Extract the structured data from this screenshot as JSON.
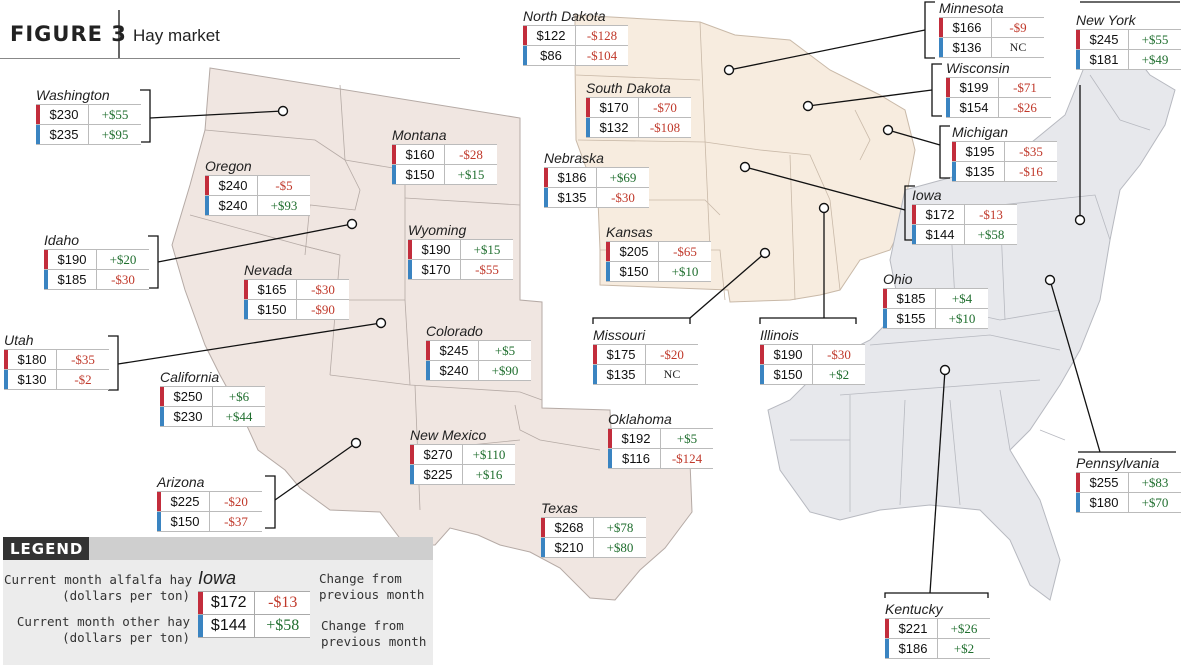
{
  "figure": {
    "label": "FIGURE 3",
    "title": "Hay market"
  },
  "states": [
    {
      "name": "Washington",
      "alfalfa": "$230",
      "alfalfa_change": "+$55",
      "other": "$235",
      "other_change": "+$95"
    },
    {
      "name": "Oregon",
      "alfalfa": "$240",
      "alfalfa_change": "-$5",
      "other": "$240",
      "other_change": "+$93"
    },
    {
      "name": "Idaho",
      "alfalfa": "$190",
      "alfalfa_change": "+$20",
      "other": "$185",
      "other_change": "-$30"
    },
    {
      "name": "Montana",
      "alfalfa": "$160",
      "alfalfa_change": "-$28",
      "other": "$150",
      "other_change": "+$15"
    },
    {
      "name": "Wyoming",
      "alfalfa": "$190",
      "alfalfa_change": "+$15",
      "other": "$170",
      "other_change": "-$55"
    },
    {
      "name": "Nevada",
      "alfalfa": "$165",
      "alfalfa_change": "-$30",
      "other": "$150",
      "other_change": "-$90"
    },
    {
      "name": "Utah",
      "alfalfa": "$180",
      "alfalfa_change": "-$35",
      "other": "$130",
      "other_change": "-$2"
    },
    {
      "name": "Colorado",
      "alfalfa": "$245",
      "alfalfa_change": "+$5",
      "other": "$240",
      "other_change": "+$90"
    },
    {
      "name": "California",
      "alfalfa": "$250",
      "alfalfa_change": "+$6",
      "other": "$230",
      "other_change": "+$44"
    },
    {
      "name": "Arizona",
      "alfalfa": "$225",
      "alfalfa_change": "-$20",
      "other": "$150",
      "other_change": "-$37"
    },
    {
      "name": "New Mexico",
      "alfalfa": "$270",
      "alfalfa_change": "+$110",
      "other": "$225",
      "other_change": "+$16"
    },
    {
      "name": "North Dakota",
      "alfalfa": "$122",
      "alfalfa_change": "-$128",
      "other": "$86",
      "other_change": "-$104"
    },
    {
      "name": "South Dakota",
      "alfalfa": "$170",
      "alfalfa_change": "-$70",
      "other": "$132",
      "other_change": "-$108"
    },
    {
      "name": "Nebraska",
      "alfalfa": "$186",
      "alfalfa_change": "+$69",
      "other": "$135",
      "other_change": "-$30"
    },
    {
      "name": "Kansas",
      "alfalfa": "$205",
      "alfalfa_change": "-$65",
      "other": "$150",
      "other_change": "+$10"
    },
    {
      "name": "Oklahoma",
      "alfalfa": "$192",
      "alfalfa_change": "+$5",
      "other": "$116",
      "other_change": "-$124"
    },
    {
      "name": "Texas",
      "alfalfa": "$268",
      "alfalfa_change": "+$78",
      "other": "$210",
      "other_change": "+$80"
    },
    {
      "name": "Missouri",
      "alfalfa": "$175",
      "alfalfa_change": "-$20",
      "other": "$135",
      "other_change": "NC"
    },
    {
      "name": "Illinois",
      "alfalfa": "$190",
      "alfalfa_change": "-$30",
      "other": "$150",
      "other_change": "+$2"
    },
    {
      "name": "Minnesota",
      "alfalfa": "$166",
      "alfalfa_change": "-$9",
      "other": "$136",
      "other_change": "NC"
    },
    {
      "name": "Wisconsin",
      "alfalfa": "$199",
      "alfalfa_change": "-$71",
      "other": "$154",
      "other_change": "-$26"
    },
    {
      "name": "Michigan",
      "alfalfa": "$195",
      "alfalfa_change": "-$35",
      "other": "$135",
      "other_change": "-$16"
    },
    {
      "name": "Iowa",
      "alfalfa": "$172",
      "alfalfa_change": "-$13",
      "other": "$144",
      "other_change": "+$58"
    },
    {
      "name": "Ohio",
      "alfalfa": "$185",
      "alfalfa_change": "+$4",
      "other": "$155",
      "other_change": "+$10"
    },
    {
      "name": "New York",
      "alfalfa": "$245",
      "alfalfa_change": "+$55",
      "other": "$181",
      "other_change": "+$49"
    },
    {
      "name": "Pennsylvania",
      "alfalfa": "$255",
      "alfalfa_change": "+$83",
      "other": "$180",
      "other_change": "+$70"
    },
    {
      "name": "Kentucky",
      "alfalfa": "$221",
      "alfalfa_change": "+$26",
      "other": "$186",
      "other_change": "+$2"
    }
  ],
  "legend": {
    "title": "LEGEND",
    "example_state": "Iowa",
    "alfalfa": "$172",
    "alfalfa_change": "-$13",
    "other": "$144",
    "other_change": "+$58",
    "alfalfa_label_1": "Current month alfalfa hay",
    "alfalfa_label_2": "(dollars per ton)",
    "other_label_1": "Current month other hay",
    "other_label_2": "(dollars per ton)",
    "change_label_1": "Change from",
    "change_label_2": "previous month"
  },
  "colors": {
    "alfalfa_marker": "#c22d3c",
    "other_marker": "#3a84c1",
    "negative_change": "#c0392b",
    "positive_change": "#1f6e2e",
    "west_region": "#f0e6e1",
    "midwest_region": "#f7ecdf",
    "east_region": "#e7e8ec"
  }
}
